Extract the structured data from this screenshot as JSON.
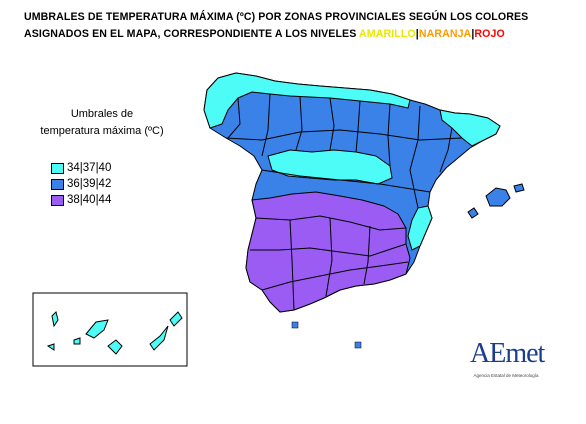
{
  "title": {
    "line1": "UMBRALES DE TEMPERATURA MÁXIMA (ºC) POR ZONAS PROVINCIALES SEGÚN LOS COLORES",
    "line2_prefix": "ASIGNADOS EN EL MAPA, CORRESPONDIENTE  A  LOS  NIVELES ",
    "levels": [
      "AMARILLO",
      "NARANJA",
      "ROJO"
    ],
    "separator": "|"
  },
  "legend": {
    "title_line1": "Umbrales de",
    "title_line2": "temperatura máxima (ºC)",
    "items": [
      {
        "label": "34|37|40",
        "color": "#4dfcf6"
      },
      {
        "label": "36|39|42",
        "color": "#3a82e8"
      },
      {
        "label": "38|40|44",
        "color": "#9a5cf3"
      }
    ]
  },
  "map": {
    "border_color": "#000000",
    "zones": [
      "34|37|40",
      "36|39|42",
      "38|40|44"
    ]
  },
  "logo": {
    "name": "AEmet",
    "subtitle": "Agencia Estatal de Meteorología",
    "color": "#1a3d8f"
  }
}
